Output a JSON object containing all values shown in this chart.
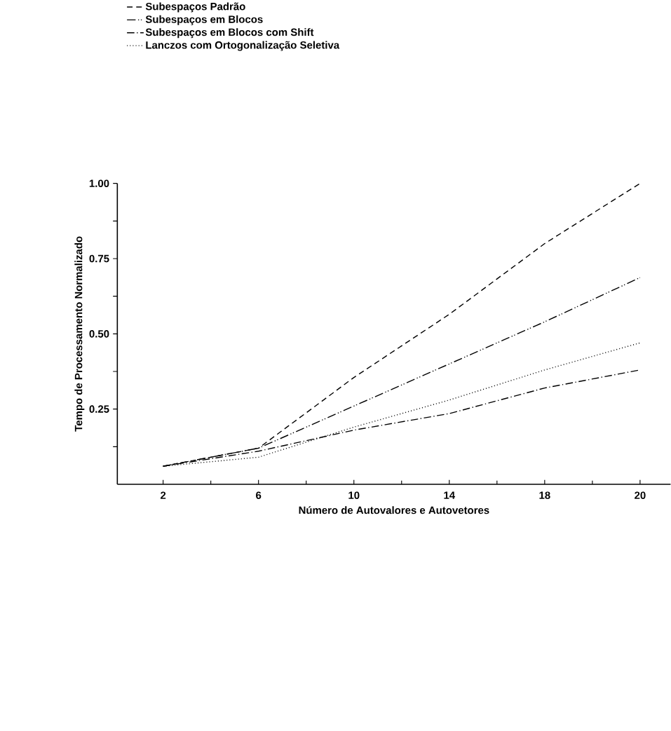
{
  "chart_data": {
    "type": "line",
    "xlabel": "Número de Autovalores e  Autovetores",
    "ylabel": "Tempo de Processamento Normalizado",
    "categories": [
      "2",
      "6",
      "10",
      "14",
      "18",
      "20"
    ],
    "series": [
      {
        "name": "Subespaços  Padrão",
        "color": "#000000",
        "line_style": "dashed",
        "values": [
          0.06,
          0.12,
          0.355,
          0.565,
          0.8,
          1.0
        ]
      },
      {
        "name": "Subespaços em Blocos",
        "color": "#000000",
        "line_style": "dashdotdot",
        "values": [
          0.06,
          0.12,
          0.26,
          0.4,
          0.54,
          0.687
        ]
      },
      {
        "name": "Subespaços em Blocos com Shift",
        "color": "#000000",
        "line_style": "dashdot",
        "values": [
          0.06,
          0.11,
          0.18,
          0.235,
          0.32,
          0.38
        ]
      },
      {
        "name": "Lanczos com Ortogonalização Seletiva",
        "color": "#000000",
        "line_style": "dotted",
        "values": [
          0.06,
          0.09,
          0.19,
          0.28,
          0.38,
          0.47
        ]
      }
    ],
    "ylim": [
      0,
      1.0
    ],
    "yticks": [
      {
        "value": 0.125,
        "label": null
      },
      {
        "value": 0.25,
        "label": "0.25"
      },
      {
        "value": 0.375,
        "label": null
      },
      {
        "value": 0.5,
        "label": "0.50"
      },
      {
        "value": 0.625,
        "label": null
      },
      {
        "value": 0.75,
        "label": "0.75"
      },
      {
        "value": 0.875,
        "label": null
      },
      {
        "value": 1.0,
        "label": "1.00"
      }
    ],
    "legend": "top left",
    "grid": false,
    "marker": "none"
  }
}
